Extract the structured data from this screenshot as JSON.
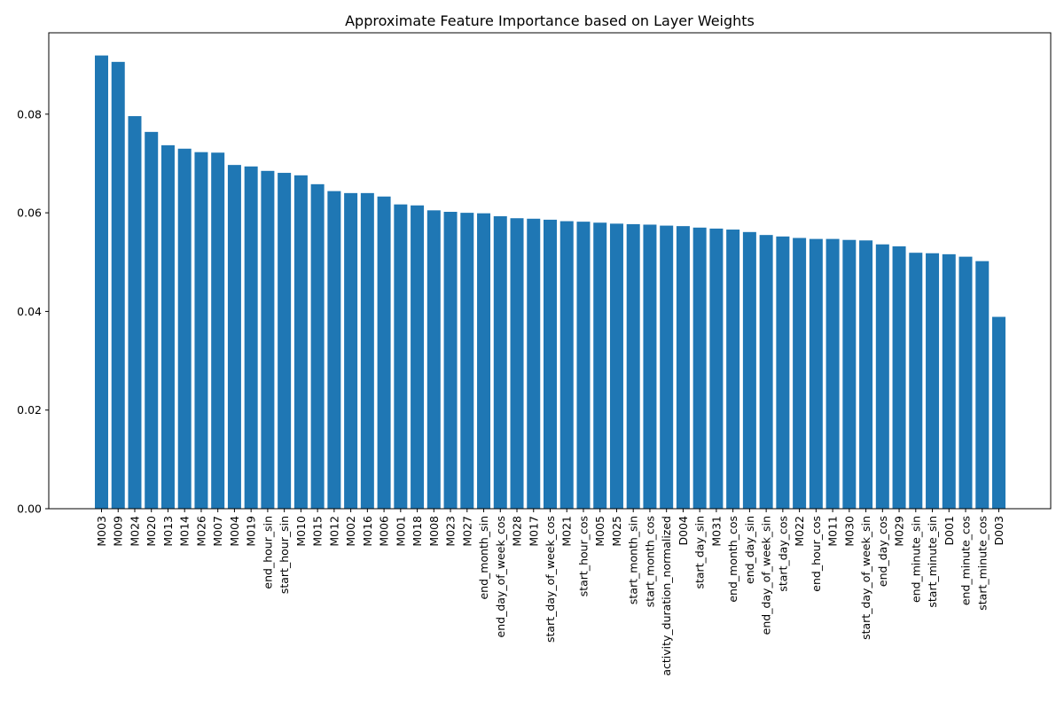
{
  "chart_data": {
    "type": "bar",
    "title": "Approximate Feature Importance based on Layer Weights",
    "xlabel": "",
    "ylabel": "",
    "ylim": [
      0,
      0.0965
    ],
    "yticks": [
      "0.00",
      "0.02",
      "0.04",
      "0.06",
      "0.08"
    ],
    "ytick_values": [
      0,
      0.02,
      0.04,
      0.06,
      0.08
    ],
    "bar_color": "#1f77b4",
    "grid": false,
    "categories": [
      "M003",
      "M009",
      "M024",
      "M020",
      "M013",
      "M014",
      "M026",
      "M007",
      "M004",
      "M019",
      "end_hour_sin",
      "start_hour_sin",
      "M010",
      "M015",
      "M012",
      "M002",
      "M016",
      "M006",
      "M001",
      "M018",
      "M008",
      "M023",
      "M027",
      "end_month_sin",
      "end_day_of_week_cos",
      "M028",
      "M017",
      "start_day_of_week_cos",
      "M021",
      "start_hour_cos",
      "M005",
      "M025",
      "start_month_sin",
      "start_month_cos",
      "activity_duration_normalized",
      "D004",
      "start_day_sin",
      "M031",
      "end_month_cos",
      "end_day_sin",
      "end_day_of_week_sin",
      "start_day_cos",
      "M022",
      "end_hour_cos",
      "M011",
      "M030",
      "start_day_of_week_sin",
      "end_day_cos",
      "M029",
      "end_minute_sin",
      "start_minute_sin",
      "D001",
      "end_minute_cos",
      "start_minute_cos",
      "D003"
    ],
    "values": [
      0.0919,
      0.0906,
      0.0796,
      0.0764,
      0.0737,
      0.073,
      0.0723,
      0.0722,
      0.0697,
      0.0694,
      0.0685,
      0.0681,
      0.0676,
      0.0658,
      0.0644,
      0.064,
      0.064,
      0.0633,
      0.0617,
      0.0615,
      0.0605,
      0.0602,
      0.06,
      0.0599,
      0.0593,
      0.0589,
      0.0588,
      0.0586,
      0.0583,
      0.0582,
      0.058,
      0.0578,
      0.0577,
      0.0576,
      0.0574,
      0.0573,
      0.057,
      0.0568,
      0.0566,
      0.0561,
      0.0555,
      0.0552,
      0.0549,
      0.0547,
      0.0547,
      0.0545,
      0.0544,
      0.0536,
      0.0532,
      0.0519,
      0.0518,
      0.0516,
      0.0511,
      0.0502,
      0.0389
    ]
  }
}
